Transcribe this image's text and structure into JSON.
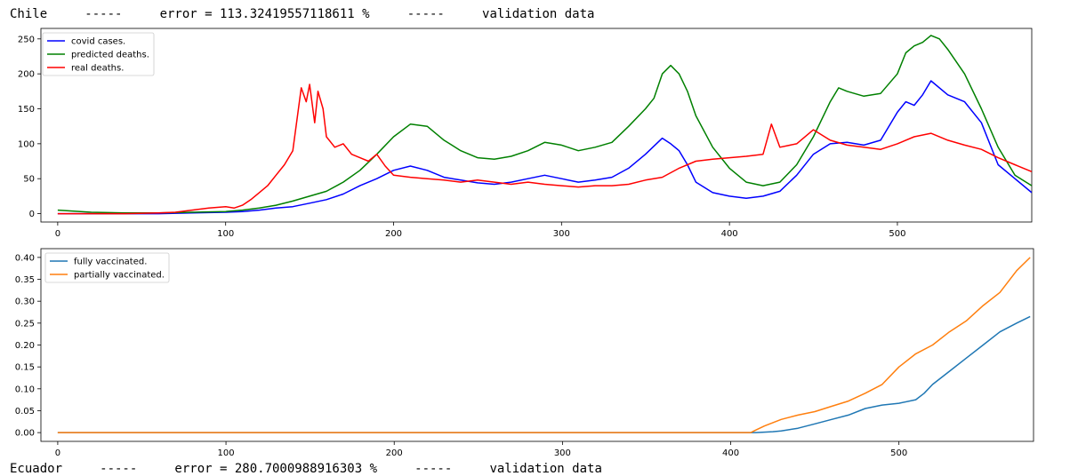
{
  "header": {
    "top_line": "Chile     -----     error = 113.32419557118611 %     -----     validation data",
    "bottom_line": "Ecuador     -----     error = 280.7000988916303 %     -----     validation data"
  },
  "chart_data": [
    {
      "type": "line",
      "title": "",
      "xlim": [
        -10,
        580
      ],
      "ylim": [
        -12,
        265
      ],
      "xticks": [
        0,
        100,
        200,
        300,
        400,
        500
      ],
      "yticks": [
        0,
        50,
        100,
        150,
        200,
        250
      ],
      "legend_position": "top-left",
      "grid": false,
      "series": [
        {
          "name": "covid cases.",
          "color": "#0000ff",
          "points": [
            [
              0,
              0
            ],
            [
              20,
              0
            ],
            [
              40,
              0
            ],
            [
              60,
              0
            ],
            [
              80,
              1
            ],
            [
              100,
              2
            ],
            [
              110,
              3
            ],
            [
              120,
              5
            ],
            [
              130,
              8
            ],
            [
              140,
              10
            ],
            [
              150,
              15
            ],
            [
              160,
              20
            ],
            [
              170,
              28
            ],
            [
              180,
              40
            ],
            [
              190,
              50
            ],
            [
              200,
              62
            ],
            [
              210,
              68
            ],
            [
              220,
              62
            ],
            [
              230,
              52
            ],
            [
              240,
              48
            ],
            [
              250,
              44
            ],
            [
              260,
              42
            ],
            [
              270,
              45
            ],
            [
              280,
              50
            ],
            [
              290,
              55
            ],
            [
              300,
              50
            ],
            [
              310,
              45
            ],
            [
              320,
              48
            ],
            [
              330,
              52
            ],
            [
              340,
              65
            ],
            [
              350,
              85
            ],
            [
              360,
              108
            ],
            [
              365,
              100
            ],
            [
              370,
              90
            ],
            [
              375,
              70
            ],
            [
              380,
              45
            ],
            [
              390,
              30
            ],
            [
              400,
              25
            ],
            [
              410,
              22
            ],
            [
              420,
              25
            ],
            [
              430,
              32
            ],
            [
              440,
              55
            ],
            [
              450,
              85
            ],
            [
              460,
              100
            ],
            [
              470,
              102
            ],
            [
              480,
              98
            ],
            [
              490,
              105
            ],
            [
              500,
              145
            ],
            [
              505,
              160
            ],
            [
              510,
              155
            ],
            [
              515,
              170
            ],
            [
              520,
              190
            ],
            [
              530,
              170
            ],
            [
              540,
              160
            ],
            [
              550,
              130
            ],
            [
              560,
              70
            ],
            [
              570,
              50
            ],
            [
              580,
              30
            ]
          ]
        },
        {
          "name": "predicted deaths.",
          "color": "#008000",
          "points": [
            [
              0,
              5
            ],
            [
              20,
              2
            ],
            [
              40,
              1
            ],
            [
              60,
              1
            ],
            [
              80,
              2
            ],
            [
              100,
              3
            ],
            [
              110,
              5
            ],
            [
              120,
              8
            ],
            [
              130,
              12
            ],
            [
              140,
              18
            ],
            [
              150,
              25
            ],
            [
              160,
              32
            ],
            [
              170,
              45
            ],
            [
              180,
              62
            ],
            [
              190,
              85
            ],
            [
              200,
              110
            ],
            [
              210,
              128
            ],
            [
              220,
              125
            ],
            [
              230,
              105
            ],
            [
              240,
              90
            ],
            [
              250,
              80
            ],
            [
              260,
              78
            ],
            [
              270,
              82
            ],
            [
              280,
              90
            ],
            [
              290,
              102
            ],
            [
              300,
              98
            ],
            [
              310,
              90
            ],
            [
              320,
              95
            ],
            [
              330,
              102
            ],
            [
              340,
              125
            ],
            [
              350,
              150
            ],
            [
              355,
              165
            ],
            [
              360,
              200
            ],
            [
              365,
              212
            ],
            [
              370,
              200
            ],
            [
              375,
              175
            ],
            [
              380,
              140
            ],
            [
              390,
              95
            ],
            [
              400,
              65
            ],
            [
              410,
              45
            ],
            [
              420,
              40
            ],
            [
              430,
              45
            ],
            [
              440,
              70
            ],
            [
              450,
              110
            ],
            [
              460,
              160
            ],
            [
              465,
              180
            ],
            [
              470,
              175
            ],
            [
              480,
              168
            ],
            [
              490,
              172
            ],
            [
              500,
              200
            ],
            [
              505,
              230
            ],
            [
              510,
              240
            ],
            [
              515,
              245
            ],
            [
              520,
              255
            ],
            [
              525,
              250
            ],
            [
              530,
              235
            ],
            [
              540,
              200
            ],
            [
              550,
              150
            ],
            [
              560,
              95
            ],
            [
              570,
              55
            ],
            [
              580,
              40
            ]
          ]
        },
        {
          "name": "real deaths.",
          "color": "#ff0000",
          "points": [
            [
              0,
              0
            ],
            [
              40,
              0
            ],
            [
              60,
              1
            ],
            [
              70,
              2
            ],
            [
              80,
              5
            ],
            [
              90,
              8
            ],
            [
              100,
              10
            ],
            [
              105,
              8
            ],
            [
              110,
              12
            ],
            [
              115,
              20
            ],
            [
              120,
              30
            ],
            [
              125,
              40
            ],
            [
              130,
              55
            ],
            [
              135,
              70
            ],
            [
              140,
              90
            ],
            [
              145,
              180
            ],
            [
              148,
              160
            ],
            [
              150,
              185
            ],
            [
              153,
              130
            ],
            [
              155,
              175
            ],
            [
              158,
              150
            ],
            [
              160,
              110
            ],
            [
              165,
              95
            ],
            [
              170,
              100
            ],
            [
              175,
              85
            ],
            [
              180,
              80
            ],
            [
              185,
              75
            ],
            [
              190,
              85
            ],
            [
              195,
              68
            ],
            [
              200,
              55
            ],
            [
              210,
              52
            ],
            [
              220,
              50
            ],
            [
              230,
              48
            ],
            [
              240,
              45
            ],
            [
              250,
              48
            ],
            [
              260,
              45
            ],
            [
              270,
              42
            ],
            [
              280,
              45
            ],
            [
              290,
              42
            ],
            [
              300,
              40
            ],
            [
              310,
              38
            ],
            [
              320,
              40
            ],
            [
              330,
              40
            ],
            [
              340,
              42
            ],
            [
              350,
              48
            ],
            [
              360,
              52
            ],
            [
              370,
              65
            ],
            [
              380,
              75
            ],
            [
              390,
              78
            ],
            [
              400,
              80
            ],
            [
              410,
              82
            ],
            [
              420,
              85
            ],
            [
              425,
              128
            ],
            [
              430,
              95
            ],
            [
              440,
              100
            ],
            [
              450,
              120
            ],
            [
              460,
              105
            ],
            [
              470,
              98
            ],
            [
              480,
              95
            ],
            [
              490,
              92
            ],
            [
              500,
              100
            ],
            [
              510,
              110
            ],
            [
              520,
              115
            ],
            [
              530,
              105
            ],
            [
              540,
              98
            ],
            [
              550,
              92
            ],
            [
              560,
              80
            ],
            [
              570,
              70
            ],
            [
              580,
              60
            ]
          ]
        }
      ]
    },
    {
      "type": "line",
      "title": "",
      "xlim": [
        -10,
        580
      ],
      "ylim": [
        -0.02,
        0.42
      ],
      "xticks": [
        0,
        100,
        200,
        300,
        400,
        500
      ],
      "yticks": [
        0.0,
        0.05,
        0.1,
        0.15,
        0.2,
        0.25,
        0.3,
        0.35,
        0.4
      ],
      "ytick_labels": [
        "0.00",
        "0.05",
        "0.10",
        "0.15",
        "0.20",
        "0.25",
        "0.30",
        "0.35",
        "0.40"
      ],
      "legend_position": "top-left",
      "grid": false,
      "series": [
        {
          "name": "fully vaccinated.",
          "color": "#1f77b4",
          "points": [
            [
              0,
              0
            ],
            [
              100,
              0
            ],
            [
              200,
              0
            ],
            [
              300,
              0
            ],
            [
              400,
              0
            ],
            [
              415,
              0
            ],
            [
              425,
              0.002
            ],
            [
              430,
              0.004
            ],
            [
              440,
              0.01
            ],
            [
              450,
              0.02
            ],
            [
              460,
              0.03
            ],
            [
              470,
              0.04
            ],
            [
              480,
              0.055
            ],
            [
              490,
              0.063
            ],
            [
              500,
              0.067
            ],
            [
              510,
              0.075
            ],
            [
              515,
              0.09
            ],
            [
              520,
              0.11
            ],
            [
              530,
              0.14
            ],
            [
              540,
              0.17
            ],
            [
              550,
              0.2
            ],
            [
              560,
              0.23
            ],
            [
              570,
              0.25
            ],
            [
              578,
              0.265
            ]
          ]
        },
        {
          "name": "partially vaccinated.",
          "color": "#ff7f0e",
          "points": [
            [
              0,
              0
            ],
            [
              100,
              0
            ],
            [
              200,
              0
            ],
            [
              300,
              0
            ],
            [
              400,
              0
            ],
            [
              412,
              0
            ],
            [
              415,
              0.006
            ],
            [
              420,
              0.015
            ],
            [
              430,
              0.03
            ],
            [
              440,
              0.04
            ],
            [
              450,
              0.048
            ],
            [
              460,
              0.06
            ],
            [
              470,
              0.072
            ],
            [
              480,
              0.09
            ],
            [
              490,
              0.11
            ],
            [
              500,
              0.15
            ],
            [
              510,
              0.18
            ],
            [
              520,
              0.2
            ],
            [
              530,
              0.23
            ],
            [
              540,
              0.255
            ],
            [
              550,
              0.29
            ],
            [
              560,
              0.32
            ],
            [
              570,
              0.37
            ],
            [
              578,
              0.4
            ]
          ]
        }
      ]
    }
  ]
}
